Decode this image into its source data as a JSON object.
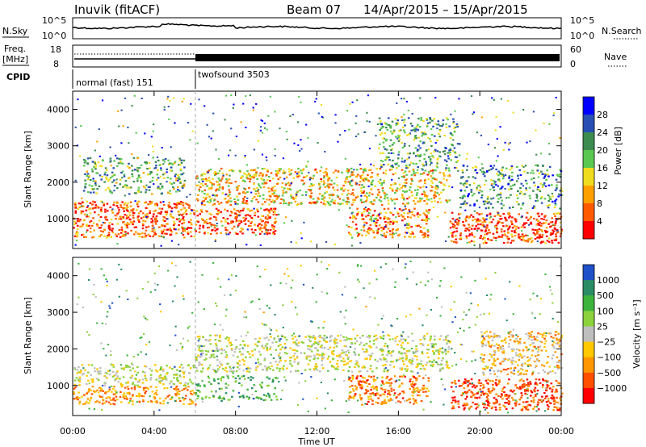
{
  "header": {
    "station": "Inuvik (fitACF)",
    "beam": "Beam 07",
    "date_range": "14/Apr/2015 – 15/Apr/2015"
  },
  "labels": {
    "nsky": "N.Sky",
    "nsearch": "N.Search",
    "freq": "Freq.",
    "mhz": "[MHz]",
    "nave": "Nave",
    "cpid": "CPID",
    "time_axis": "Time UT",
    "slant_range": "Slant Range [km]",
    "power_unit": "Power [dB]",
    "velocity_unit": "Velocity [m s⁻¹]"
  },
  "noise_panel": {
    "left_ticks": [
      "10^5",
      "10^0"
    ],
    "right_ticks": [
      "10^5",
      "10^0"
    ]
  },
  "freq_panel": {
    "left_ticks": [
      "18",
      "8"
    ],
    "right_ticks": [
      "60",
      "0"
    ]
  },
  "cpid_panel": {
    "segments": [
      {
        "name": "normal (fast) 151",
        "start_hour": 0,
        "end_hour": 6
      },
      {
        "name": "twofsound 3503",
        "start_hour": 6,
        "end_hour": 24
      }
    ]
  },
  "chart_data": [
    {
      "type": "heatmap",
      "panel": "power",
      "xlabel": "Time UT",
      "ylabel": "Slant Range [km]",
      "x_ticks": [
        "00:00",
        "04:00",
        "08:00",
        "12:00",
        "16:00",
        "20:00",
        "00:00"
      ],
      "x_range_hours": [
        0,
        24
      ],
      "y_ticks": [
        1000,
        2000,
        3000,
        4000
      ],
      "y_range": [
        180,
        4500
      ],
      "colorbar_label": "Power [dB]",
      "colorbar_ticks": [
        "4",
        "8",
        "12",
        "16",
        "20",
        "24",
        "28"
      ],
      "colorbar_colors": [
        "#0000ff",
        "#2850b4",
        "#3c8c50",
        "#5ac850",
        "#f0dc1e",
        "#ffa000",
        "#ff5a00",
        "#ff0000"
      ],
      "scatter_regions": [
        {
          "t0": 0.0,
          "t1": 6.0,
          "r0": 500,
          "r1": 1500,
          "level": 0.85
        },
        {
          "t0": 0.5,
          "t1": 5.5,
          "r0": 1700,
          "r1": 2700,
          "level": 0.4
        },
        {
          "t0": 6.0,
          "t1": 10.0,
          "r0": 600,
          "r1": 1300,
          "level": 0.9
        },
        {
          "t0": 6.0,
          "t1": 18.5,
          "r0": 1400,
          "r1": 2400,
          "level": 0.65
        },
        {
          "t0": 13.5,
          "t1": 17.5,
          "r0": 500,
          "r1": 1300,
          "level": 0.75
        },
        {
          "t0": 15.0,
          "t1": 19.0,
          "r0": 2400,
          "r1": 3800,
          "level": 0.35
        },
        {
          "t0": 18.5,
          "t1": 24.0,
          "r0": 350,
          "r1": 1200,
          "level": 0.9
        },
        {
          "t0": 19.0,
          "t1": 24.0,
          "r0": 1300,
          "r1": 2500,
          "level": 0.3
        }
      ]
    },
    {
      "type": "heatmap",
      "panel": "velocity",
      "xlabel": "Time UT",
      "ylabel": "Slant Range [km]",
      "x_ticks": [
        "00:00",
        "04:00",
        "08:00",
        "12:00",
        "16:00",
        "20:00",
        "00:00"
      ],
      "x_range_hours": [
        0,
        24
      ],
      "y_ticks": [
        1000,
        2000,
        3000,
        4000
      ],
      "y_range": [
        180,
        4500
      ],
      "colorbar_label": "Velocity [m s⁻¹]",
      "colorbar_ticks": [
        "1000",
        "500",
        "100",
        "25",
        "−25",
        "−100",
        "−500",
        "−1000"
      ],
      "colorbar_colors": [
        "#1e50c8",
        "#2a8c64",
        "#3cb43c",
        "#8cd23c",
        "#bebebe",
        "#ffc800",
        "#ff9600",
        "#ff5000",
        "#ff0000"
      ],
      "scatter_regions": [
        {
          "t0": 0.0,
          "t1": 6.0,
          "r0": 500,
          "r1": 1000,
          "level": 0.7
        },
        {
          "t0": 0.0,
          "t1": 6.0,
          "r0": 1000,
          "r1": 1600,
          "level": 0.45
        },
        {
          "t0": 6.0,
          "t1": 18.5,
          "r0": 1400,
          "r1": 2400,
          "level": 0.45
        },
        {
          "t0": 6.0,
          "t1": 10.0,
          "r0": 600,
          "r1": 1300,
          "level": 0.2
        },
        {
          "t0": 13.5,
          "t1": 17.5,
          "r0": 500,
          "r1": 1300,
          "level": 0.75
        },
        {
          "t0": 18.5,
          "t1": 24.0,
          "r0": 350,
          "r1": 1200,
          "level": 0.85
        },
        {
          "t0": 20.0,
          "t1": 24.0,
          "r0": 1300,
          "r1": 2500,
          "level": 0.6
        }
      ]
    }
  ]
}
